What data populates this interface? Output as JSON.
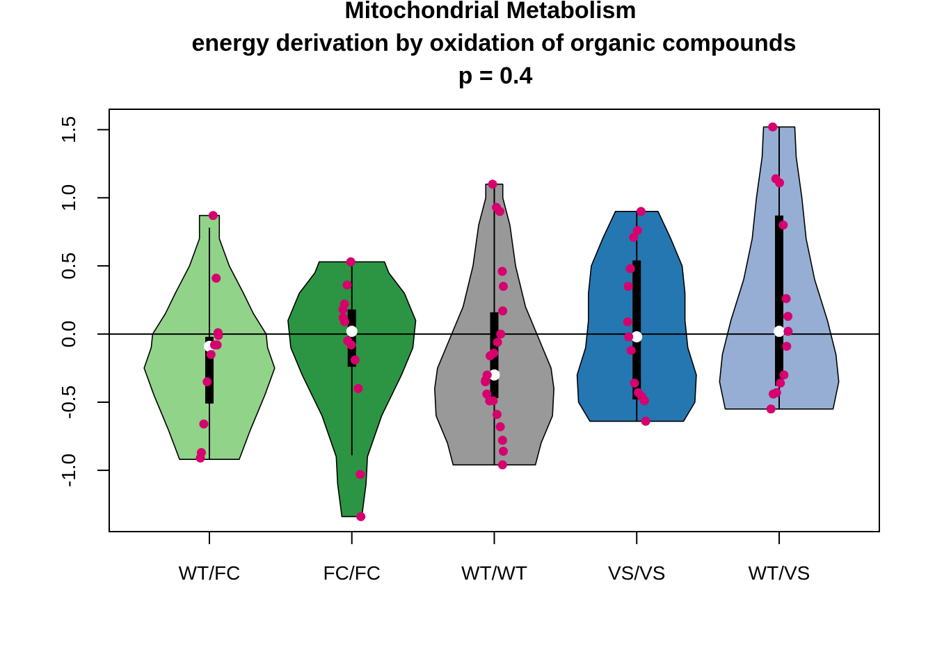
{
  "title_lines": [
    "Mitochondrial Metabolism",
    "energy derivation by oxidation of organic compounds",
    "p = 0.4"
  ],
  "chart_data": {
    "type": "violin",
    "categories": [
      "WT/FC",
      "FC/FC",
      "WT/WT",
      "VS/VS",
      "WT/VS"
    ],
    "ylim": [
      -1.45,
      1.65
    ],
    "y_ticks": [
      -1.0,
      -0.5,
      0.0,
      0.5,
      1.0,
      1.5
    ],
    "y_tick_labels": [
      "-1.0",
      "-0.5",
      "0.0",
      "0.5",
      "1.0",
      "1.5"
    ],
    "reference_line_y": 0.0,
    "grid": false,
    "point_color": "#d6006e",
    "median_color": "#ffffff",
    "groups": [
      {
        "category": "WT/FC",
        "color": "#90d389",
        "min": -0.92,
        "max": 0.87,
        "whisker_low": -0.92,
        "whisker_high": 0.78,
        "q1": -0.51,
        "q3": -0.02,
        "median": -0.09,
        "density": [
          [
            -0.92,
            0.21
          ],
          [
            -0.7,
            0.29
          ],
          [
            -0.45,
            0.39
          ],
          [
            -0.25,
            0.46
          ],
          [
            -0.1,
            0.41
          ],
          [
            0.0,
            0.4
          ],
          [
            0.15,
            0.31
          ],
          [
            0.3,
            0.24
          ],
          [
            0.5,
            0.14
          ],
          [
            0.7,
            0.07
          ],
          [
            0.87,
            0.07
          ]
        ],
        "points": [
          0.87,
          0.41,
          0.01,
          -0.01,
          -0.08,
          -0.08,
          -0.15,
          -0.35,
          -0.66,
          -0.87,
          -0.91
        ]
      },
      {
        "category": "FC/FC",
        "color": "#2c9543",
        "min": -1.34,
        "max": 0.53,
        "whisker_low": -0.89,
        "whisker_high": 0.53,
        "q1": -0.24,
        "q3": 0.18,
        "median": 0.02,
        "density": [
          [
            -1.34,
            0.07
          ],
          [
            -1.1,
            0.1
          ],
          [
            -0.9,
            0.11
          ],
          [
            -0.6,
            0.21
          ],
          [
            -0.3,
            0.35
          ],
          [
            -0.1,
            0.43
          ],
          [
            0.1,
            0.45
          ],
          [
            0.3,
            0.37
          ],
          [
            0.45,
            0.26
          ],
          [
            0.53,
            0.23
          ]
        ],
        "points": [
          0.53,
          0.36,
          0.22,
          0.18,
          0.12,
          0.09,
          -0.05,
          -0.08,
          -0.19,
          -0.4,
          -1.03,
          -1.34
        ]
      },
      {
        "category": "WT/WT",
        "color": "#999999",
        "min": -0.96,
        "max": 1.1,
        "whisker_low": -0.96,
        "whisker_high": 1.1,
        "q1": -0.47,
        "q3": 0.16,
        "median": -0.3,
        "density": [
          [
            -0.96,
            0.29
          ],
          [
            -0.8,
            0.33
          ],
          [
            -0.6,
            0.41
          ],
          [
            -0.4,
            0.42
          ],
          [
            -0.25,
            0.4
          ],
          [
            -0.05,
            0.32
          ],
          [
            0.2,
            0.22
          ],
          [
            0.5,
            0.15
          ],
          [
            0.8,
            0.11
          ],
          [
            1.0,
            0.06
          ],
          [
            1.1,
            0.06
          ]
        ],
        "points": [
          1.1,
          0.93,
          0.9,
          0.46,
          0.35,
          0.17,
          0.0,
          -0.06,
          -0.14,
          -0.16,
          -0.3,
          -0.34,
          -0.35,
          -0.44,
          -0.49,
          -0.49,
          -0.59,
          -0.68,
          -0.78,
          -0.86,
          -0.96
        ]
      },
      {
        "category": "VS/VS",
        "color": "#2577b1",
        "min": -0.64,
        "max": 0.9,
        "whisker_low": -0.64,
        "whisker_high": 0.9,
        "q1": -0.48,
        "q3": 0.54,
        "median": -0.02,
        "density": [
          [
            -0.64,
            0.33
          ],
          [
            -0.5,
            0.41
          ],
          [
            -0.3,
            0.42
          ],
          [
            -0.1,
            0.36
          ],
          [
            0.1,
            0.34
          ],
          [
            0.3,
            0.34
          ],
          [
            0.5,
            0.32
          ],
          [
            0.7,
            0.24
          ],
          [
            0.9,
            0.15
          ]
        ],
        "points": [
          0.9,
          0.76,
          0.71,
          0.48,
          0.35,
          0.09,
          -0.02,
          -0.12,
          -0.36,
          -0.43,
          -0.46,
          -0.49,
          -0.64
        ]
      },
      {
        "category": "WT/VS",
        "color": "#96aed4",
        "min": -0.55,
        "max": 1.52,
        "whisker_low": -0.55,
        "whisker_high": 1.52,
        "q1": -0.38,
        "q3": 0.87,
        "median": 0.02,
        "density": [
          [
            -0.55,
            0.38
          ],
          [
            -0.35,
            0.42
          ],
          [
            -0.15,
            0.4
          ],
          [
            0.1,
            0.34
          ],
          [
            0.4,
            0.25
          ],
          [
            0.7,
            0.19
          ],
          [
            1.0,
            0.16
          ],
          [
            1.3,
            0.12
          ],
          [
            1.52,
            0.11
          ]
        ],
        "points": [
          1.52,
          1.14,
          1.11,
          0.8,
          0.26,
          0.13,
          0.02,
          -0.09,
          -0.3,
          -0.36,
          -0.43,
          -0.44,
          -0.55
        ]
      }
    ]
  }
}
